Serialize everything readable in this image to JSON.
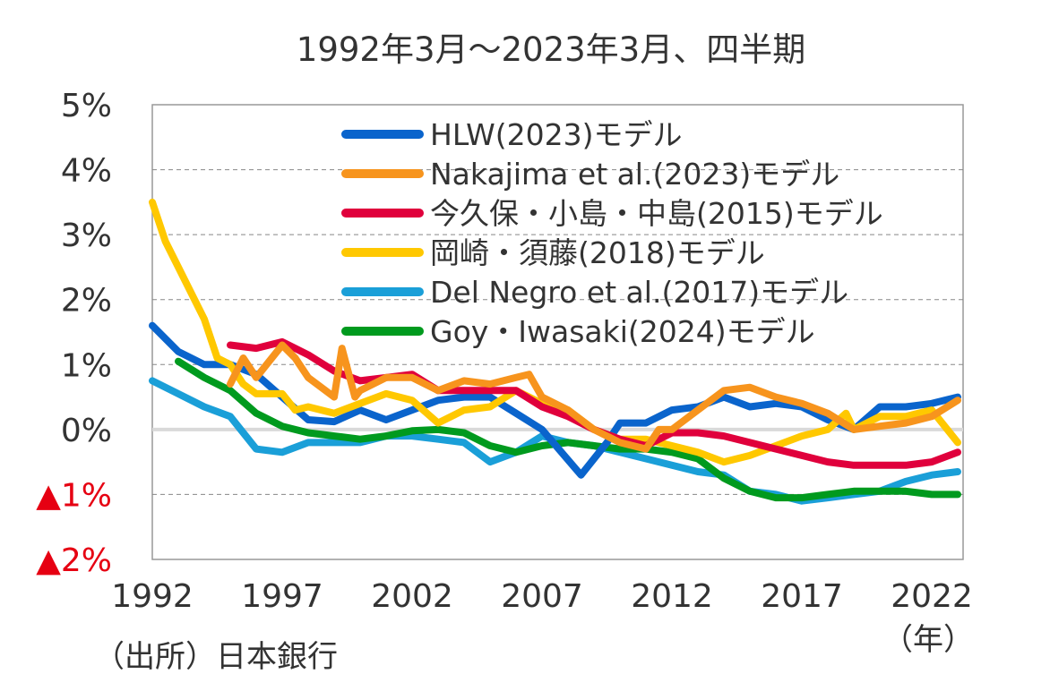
{
  "chart_data": {
    "type": "line",
    "title": "1992年3月～2023年3月、四半期",
    "xlabel": "（年）",
    "ylabel": "",
    "source": "（出所）日本銀行",
    "xlim": [
      1992,
      2023.2
    ],
    "ylim": [
      -2,
      5
    ],
    "grid": true,
    "legend_position": "top-right",
    "x_ticks": [
      1992,
      1997,
      2002,
      2007,
      2012,
      2017,
      2022
    ],
    "x_tick_labels": [
      "1992",
      "1997",
      "2002",
      "2007",
      "2012",
      "2017",
      "2022"
    ],
    "y_ticks": [
      5,
      4,
      3,
      2,
      1,
      0,
      -1,
      -2
    ],
    "y_tick_labels": [
      "5%",
      "4%",
      "3%",
      "2%",
      "1%",
      "0%",
      "▲1%",
      "▲2%"
    ],
    "negative_label_color": "#e60012",
    "series": [
      {
        "name": "HLW(2023)モデル",
        "color": "#0a64cc",
        "x": [
          1992,
          1993,
          1994,
          1995,
          1996,
          1997,
          1998,
          1999,
          2000,
          2001,
          2002,
          2003,
          2004,
          2005,
          2006,
          2007,
          2008.5,
          2009.5,
          2010,
          2011,
          2012,
          2013,
          2014,
          2015,
          2016,
          2017,
          2018,
          2019,
          2020,
          2021,
          2022,
          2023
        ],
        "y": [
          1.6,
          1.2,
          1.0,
          1.0,
          0.85,
          0.5,
          0.15,
          0.12,
          0.3,
          0.15,
          0.3,
          0.45,
          0.5,
          0.5,
          0.25,
          0.0,
          -0.7,
          -0.2,
          0.1,
          0.1,
          0.3,
          0.35,
          0.5,
          0.35,
          0.4,
          0.35,
          0.15,
          0.0,
          0.35,
          0.35,
          0.4,
          0.5
        ]
      },
      {
        "name": "Nakajima et al.(2023)モデル",
        "color": "#f7941d",
        "x": [
          1995,
          1995.5,
          1996,
          1997,
          1997.5,
          1998,
          1999,
          1999.3,
          1999.8,
          2000,
          2001,
          2002,
          2003,
          2004,
          2005,
          2006,
          2006.5,
          2007,
          2008,
          2009,
          2010,
          2011,
          2011.5,
          2012,
          2013,
          2014,
          2015,
          2016,
          2017,
          2018,
          2019,
          2020,
          2021,
          2022,
          2023
        ],
        "y": [
          0.7,
          1.1,
          0.8,
          1.3,
          1.1,
          0.8,
          0.5,
          1.25,
          0.5,
          0.6,
          0.8,
          0.8,
          0.6,
          0.75,
          0.7,
          0.8,
          0.85,
          0.5,
          0.3,
          0.0,
          -0.2,
          -0.3,
          0.0,
          0.0,
          0.3,
          0.6,
          0.65,
          0.5,
          0.4,
          0.25,
          0.0,
          0.05,
          0.1,
          0.2,
          0.45
        ]
      },
      {
        "name": "今久保・小島・中島(2015)モデル",
        "color": "#e0003c",
        "x": [
          1995,
          1996,
          1997,
          1998,
          1999,
          2000,
          2001,
          2002,
          2003,
          2004,
          2005,
          2006,
          2007,
          2008,
          2009,
          2010,
          2011,
          2012,
          2013,
          2014,
          2015,
          2016,
          2017,
          2018,
          2019,
          2020,
          2021,
          2022,
          2023
        ],
        "y": [
          1.3,
          1.25,
          1.35,
          1.15,
          0.9,
          0.75,
          0.8,
          0.85,
          0.6,
          0.6,
          0.6,
          0.6,
          0.35,
          0.2,
          0.0,
          -0.15,
          -0.25,
          -0.05,
          -0.05,
          -0.1,
          -0.2,
          -0.3,
          -0.4,
          -0.5,
          -0.55,
          -0.55,
          -0.55,
          -0.5,
          -0.35
        ]
      },
      {
        "name": "岡崎・須藤(2018)モデル",
        "color": "#ffc800",
        "x": [
          1992,
          1992.5,
          1993,
          1994,
          1994.5,
          1995,
          1995.5,
          1996,
          1997,
          1997.5,
          1998,
          1999,
          2000,
          2001,
          2002,
          2003,
          2004,
          2005,
          2006,
          2007,
          2008,
          2009,
          2010,
          2011,
          2012,
          2013,
          2014,
          2015,
          2016,
          2017,
          2018,
          2018.7,
          2019,
          2020,
          2021,
          2022,
          2023
        ],
        "y": [
          3.5,
          2.9,
          2.5,
          1.7,
          1.1,
          1.0,
          0.7,
          0.55,
          0.55,
          0.3,
          0.35,
          0.25,
          0.4,
          0.55,
          0.45,
          0.1,
          0.3,
          0.35,
          0.6,
          0.4,
          0.3,
          0.0,
          -0.15,
          -0.15,
          -0.25,
          -0.35,
          -0.5,
          -0.4,
          -0.25,
          -0.1,
          0.0,
          0.25,
          0.0,
          0.2,
          0.2,
          0.3,
          -0.2
        ]
      },
      {
        "name": "Del Negro et al.(2017)モデル",
        "color": "#1a9fd8",
        "x": [
          1992,
          1993,
          1994,
          1995,
          1996,
          1997,
          1998,
          1999,
          2000,
          2001,
          2002,
          2003,
          2004,
          2005,
          2006,
          2007,
          2008,
          2009,
          2010,
          2011,
          2012,
          2013,
          2014,
          2015,
          2016,
          2017,
          2018,
          2019,
          2020,
          2021,
          2022,
          2023
        ],
        "y": [
          0.75,
          0.55,
          0.35,
          0.2,
          -0.3,
          -0.35,
          -0.2,
          -0.2,
          -0.2,
          -0.1,
          -0.1,
          -0.15,
          -0.2,
          -0.5,
          -0.35,
          -0.1,
          -0.2,
          -0.25,
          -0.35,
          -0.45,
          -0.55,
          -0.65,
          -0.7,
          -0.95,
          -1.0,
          -1.1,
          -1.05,
          -1.0,
          -0.95,
          -0.8,
          -0.7,
          -0.65
        ]
      },
      {
        "name": "Goy・Iwasaki(2024)モデル",
        "color": "#009a1e",
        "x": [
          1993,
          1994,
          1995,
          1996,
          1997,
          1998,
          1999,
          2000,
          2001,
          2002,
          2003,
          2004,
          2005,
          2006,
          2007,
          2008,
          2009,
          2010,
          2011,
          2012,
          2013,
          2014,
          2015,
          2016,
          2017,
          2018,
          2019,
          2020,
          2021,
          2022,
          2023
        ],
        "y": [
          1.05,
          0.8,
          0.6,
          0.25,
          0.05,
          -0.05,
          -0.1,
          -0.15,
          -0.1,
          -0.02,
          0.0,
          -0.05,
          -0.25,
          -0.35,
          -0.25,
          -0.2,
          -0.25,
          -0.3,
          -0.3,
          -0.35,
          -0.45,
          -0.75,
          -0.95,
          -1.05,
          -1.05,
          -1.0,
          -0.95,
          -0.95,
          -0.95,
          -1.0,
          -1.0
        ]
      }
    ]
  }
}
